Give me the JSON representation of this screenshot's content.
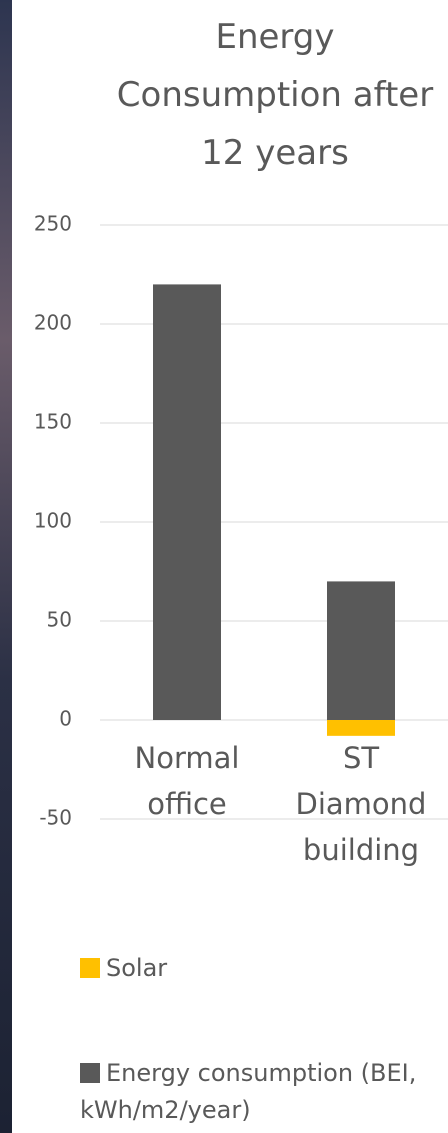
{
  "chart_data": {
    "type": "bar",
    "stacked": true,
    "title": "Energy Consumption after 12 years",
    "categories": [
      "Normal office",
      "ST Diamond building"
    ],
    "series": [
      {
        "name": "Solar",
        "color": "#ffc000",
        "values": [
          0,
          -8
        ]
      },
      {
        "name": "Energy consumption (BEI, kWh/m2/year)",
        "color": "#595959",
        "values": [
          220,
          70
        ]
      }
    ],
    "ylim": [
      -50,
      250
    ],
    "yticks": [
      -50,
      0,
      50,
      100,
      150,
      200,
      250
    ],
    "grid": true
  }
}
